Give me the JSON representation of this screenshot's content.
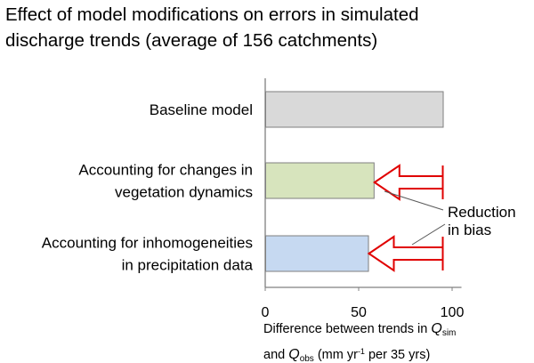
{
  "title_lines": [
    "Effect of model modifications on errors in simulated",
    "discharge trends (average of 156 catchments)"
  ],
  "xlabel": {
    "line1_prefix": "Difference between trends in ",
    "q": "Q",
    "sim": "sim",
    "line2_prefix": "and ",
    "obs": "obs",
    "units_a": " (mm yr",
    "units_exp": "-1",
    "units_b": " per 35 yrs)"
  },
  "annotation_lines": [
    "Reduction",
    "in bias"
  ],
  "colors": {
    "baseline_fill": "#d9d9d9",
    "vegetation_fill": "#d7e4bd",
    "precipitation_fill": "#c6d9f1",
    "arrow_stroke": "#e00000",
    "axis": "#808080"
  },
  "chart_data": {
    "type": "bar",
    "orientation": "horizontal",
    "title": "Effect of model modifications on errors in simulated discharge trends (average of 156 catchments)",
    "categories": [
      [
        "Baseline model"
      ],
      [
        "Accounting for changes in",
        "vegetation dynamics"
      ],
      [
        "Accounting for inhomogeneities",
        "in precipitation data"
      ]
    ],
    "values": [
      95,
      58,
      55
    ],
    "xticks": [
      0,
      50,
      100
    ],
    "xlim": [
      0,
      105
    ],
    "xlabel": "Difference between trends in Qsim and Qobs (mm yr-1 per 35 yrs)",
    "annotations": [
      {
        "text": "Reduction in bias",
        "arrows_from": 95,
        "arrows_to": [
          58,
          55
        ]
      }
    ]
  }
}
